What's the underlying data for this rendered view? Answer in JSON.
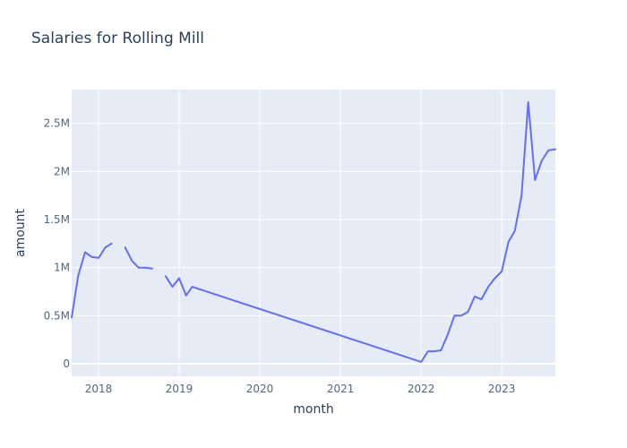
{
  "chart_data": {
    "type": "line",
    "title": "Salaries for Rolling Mill",
    "xlabel": "month",
    "ylabel": "amount",
    "xlim": [
      "2017-09-01",
      "2023-09-01"
    ],
    "ylim": [
      -130000,
      2850000
    ],
    "grid": true,
    "x_ticks": [
      "2018",
      "2019",
      "2020",
      "2021",
      "2022",
      "2023"
    ],
    "y_ticks": [
      {
        "value": 0,
        "label": "0"
      },
      {
        "value": 500000,
        "label": "0.5M"
      },
      {
        "value": 1000000,
        "label": "1M"
      },
      {
        "value": 1500000,
        "label": "1.5M"
      },
      {
        "value": 2000000,
        "label": "2M"
      },
      {
        "value": 2500000,
        "label": "2.5M"
      }
    ],
    "series": [
      {
        "color": "#636efa",
        "segments": [
          [
            [
              "2017-09-01",
              480000
            ],
            [
              "2017-10-01",
              920000
            ],
            [
              "2017-11-01",
              1160000
            ],
            [
              "2017-12-01",
              1110000
            ],
            [
              "2018-01-01",
              1100000
            ],
            [
              "2018-02-01",
              1210000
            ],
            [
              "2018-03-01",
              1250000
            ]
          ],
          [
            [
              "2018-05-01",
              1210000
            ],
            [
              "2018-06-01",
              1070000
            ],
            [
              "2018-07-01",
              1000000
            ],
            [
              "2018-08-01",
              1000000
            ],
            [
              "2018-09-01",
              990000
            ]
          ],
          [
            [
              "2018-11-01",
              910000
            ],
            [
              "2018-12-01",
              800000
            ],
            [
              "2019-01-01",
              890000
            ],
            [
              "2019-02-01",
              710000
            ],
            [
              "2019-03-01",
              800000
            ],
            [
              "2022-01-01",
              20000
            ],
            [
              "2022-02-01",
              130000
            ],
            [
              "2022-03-01",
              130000
            ],
            [
              "2022-04-01",
              140000
            ],
            [
              "2022-05-01",
              300000
            ],
            [
              "2022-06-01",
              500000
            ],
            [
              "2022-07-01",
              500000
            ],
            [
              "2022-08-01",
              540000
            ],
            [
              "2022-09-01",
              700000
            ],
            [
              "2022-10-01",
              670000
            ],
            [
              "2022-11-01",
              800000
            ],
            [
              "2022-12-01",
              890000
            ],
            [
              "2023-01-01",
              960000
            ],
            [
              "2023-02-01",
              1270000
            ],
            [
              "2023-03-01",
              1380000
            ],
            [
              "2023-04-01",
              1750000
            ],
            [
              "2023-05-01",
              2720000
            ],
            [
              "2023-06-01",
              1910000
            ],
            [
              "2023-07-01",
              2110000
            ],
            [
              "2023-08-01",
              2220000
            ],
            [
              "2023-09-01",
              2230000
            ]
          ]
        ]
      }
    ]
  }
}
